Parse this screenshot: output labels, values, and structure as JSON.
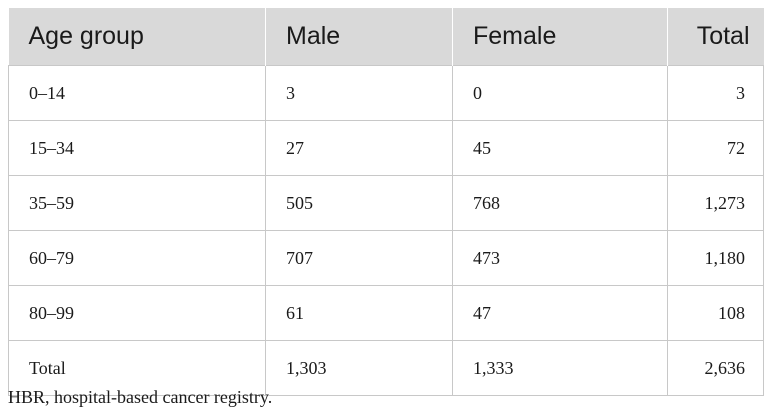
{
  "table": {
    "headers": [
      "Age group",
      "Male",
      "Female",
      "Total"
    ],
    "rows": [
      [
        "0–14",
        "3",
        "0",
        "3"
      ],
      [
        "15–34",
        "27",
        "45",
        "72"
      ],
      [
        "35–59",
        "505",
        "768",
        "1,273"
      ],
      [
        "60–79",
        "707",
        "473",
        "1,180"
      ],
      [
        "80–99",
        "61",
        "47",
        "108"
      ],
      [
        "Total",
        "1,303",
        "1,333",
        "2,636"
      ]
    ]
  },
  "footnote": "HBR, hospital-based cancer registry.",
  "colors": {
    "header_bg": "#d9d9d9",
    "border": "#c8c8c8",
    "text": "#1a1a1a"
  }
}
